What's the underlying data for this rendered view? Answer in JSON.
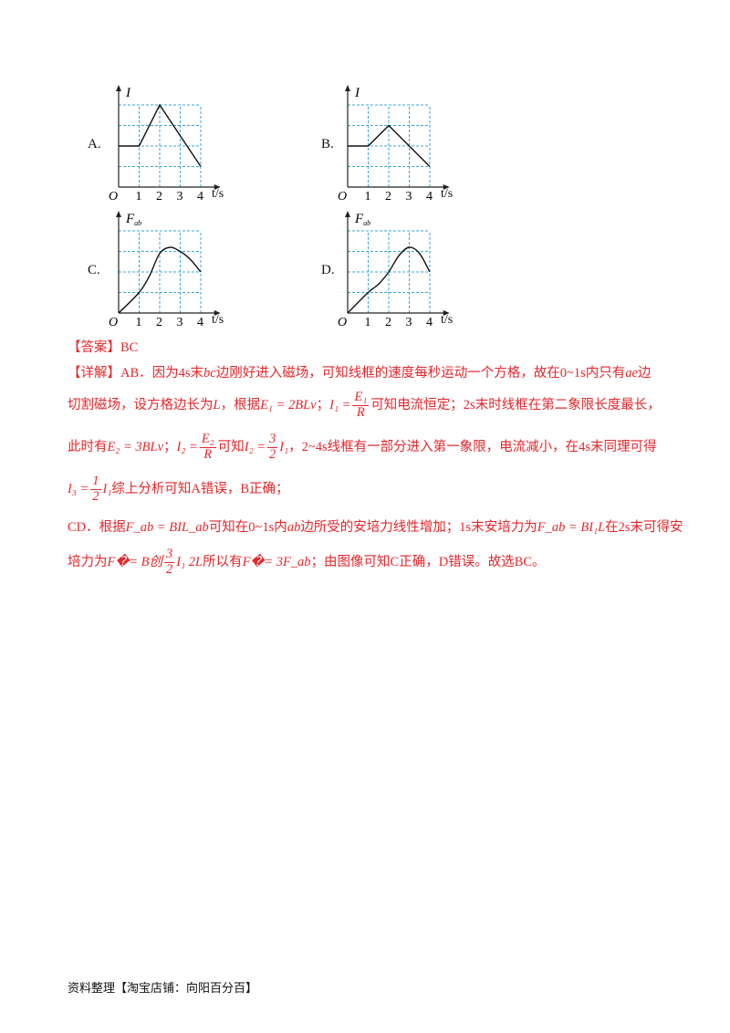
{
  "graphs": [
    {
      "label": "A.",
      "ylabel": "I",
      "xlabel": "t/s",
      "origin": "O",
      "xticks": [
        "1",
        "2",
        "3",
        "4"
      ],
      "kind": "line",
      "points": [
        [
          0,
          2
        ],
        [
          1,
          2
        ],
        [
          2,
          4
        ],
        [
          4,
          1
        ]
      ]
    },
    {
      "label": "B.",
      "ylabel": "I",
      "xlabel": "t/s",
      "origin": "O",
      "xticks": [
        "1",
        "2",
        "3",
        "4"
      ],
      "kind": "line",
      "points": [
        [
          0,
          2
        ],
        [
          1,
          2
        ],
        [
          2,
          3
        ],
        [
          4,
          1
        ]
      ]
    },
    {
      "label": "C.",
      "ylabel": "F_ab",
      "xlabel": "t/s",
      "origin": "O",
      "xticks": [
        "1",
        "2",
        "3",
        "4"
      ],
      "kind": "curve",
      "points": [
        [
          0,
          0
        ],
        [
          1,
          1
        ],
        [
          1.5,
          1.8
        ],
        [
          2,
          2.9
        ],
        [
          2.5,
          3.2
        ],
        [
          3,
          3
        ],
        [
          3.5,
          2.6
        ],
        [
          4,
          2
        ]
      ]
    },
    {
      "label": "D.",
      "ylabel": "F_ab",
      "xlabel": "t/s",
      "origin": "O",
      "xticks": [
        "1",
        "2",
        "3",
        "4"
      ],
      "kind": "curve",
      "points": [
        [
          0,
          0
        ],
        [
          1,
          1
        ],
        [
          1.5,
          1.4
        ],
        [
          2,
          2
        ],
        [
          2.5,
          2.8
        ],
        [
          3,
          3.2
        ],
        [
          3.5,
          2.9
        ],
        [
          4,
          2
        ]
      ]
    }
  ],
  "grid_color": "#3aa6d8",
  "text_color": "#e6262b",
  "answer": "【答案】BC",
  "detail": {
    "l1": "【详解】AB．因为4s末",
    "l1b": "bc",
    "l1c": "边刚好进入磁场，可知线框的速度每秒运动一个方格，故在0~1s内只有",
    "l1d": "ae",
    "l1e": "边",
    "l2a": "切割磁场，设方格边长为",
    "l2L": "L",
    "l2b": "，根据",
    "l2f1": "E₁ = 2BLv",
    "l2c": "；",
    "l2f2": "I₁ =",
    "l2n": "E₁",
    "l2d": "R",
    "l2e": "可知电流恒定；2s末时线框在第二象限长度最长，",
    "l3a": "此时有",
    "l3f1": "E₂ = 3BLv",
    "l3b": "；",
    "l3f2": "I₂ =",
    "l3n": "E₂",
    "l3d": "R",
    "l3c": "可知",
    "l3f3": "I₂ =",
    "l3n2": "3",
    "l3d2": "2",
    "l3f4": "I₁",
    "l3e": "，2~4s线框有一部分进入第一象限，电流减小，在4s末同理可得",
    "l4f": "I₃ =",
    "l4n": "1",
    "l4d": "2",
    "l4f2": "I₁",
    "l4a": "综上分析可知A错误，B正确；",
    "l5a": "CD．根据",
    "l5f1": "F_ab = BIL_ab",
    "l5b": "可知在0~1s内",
    "l5ab": "ab",
    "l5c": "边所受的安培力线性增加；1s末安培力为",
    "l5f2": "F_ab = BI₁L",
    "l5d": "在2s末可得安",
    "l6a": "培力为",
    "l6f1": "F�= B创",
    "l6n": "3",
    "l6d": "2",
    "l6f2": "I₁  2L",
    "l6b": "所以有",
    "l6f3": "F�= 3F_ab",
    "l6c": "；由图像可知C正确，D错误。故选BC。"
  },
  "footer": "资料整理【淘宝店铺：向阳百分百】"
}
